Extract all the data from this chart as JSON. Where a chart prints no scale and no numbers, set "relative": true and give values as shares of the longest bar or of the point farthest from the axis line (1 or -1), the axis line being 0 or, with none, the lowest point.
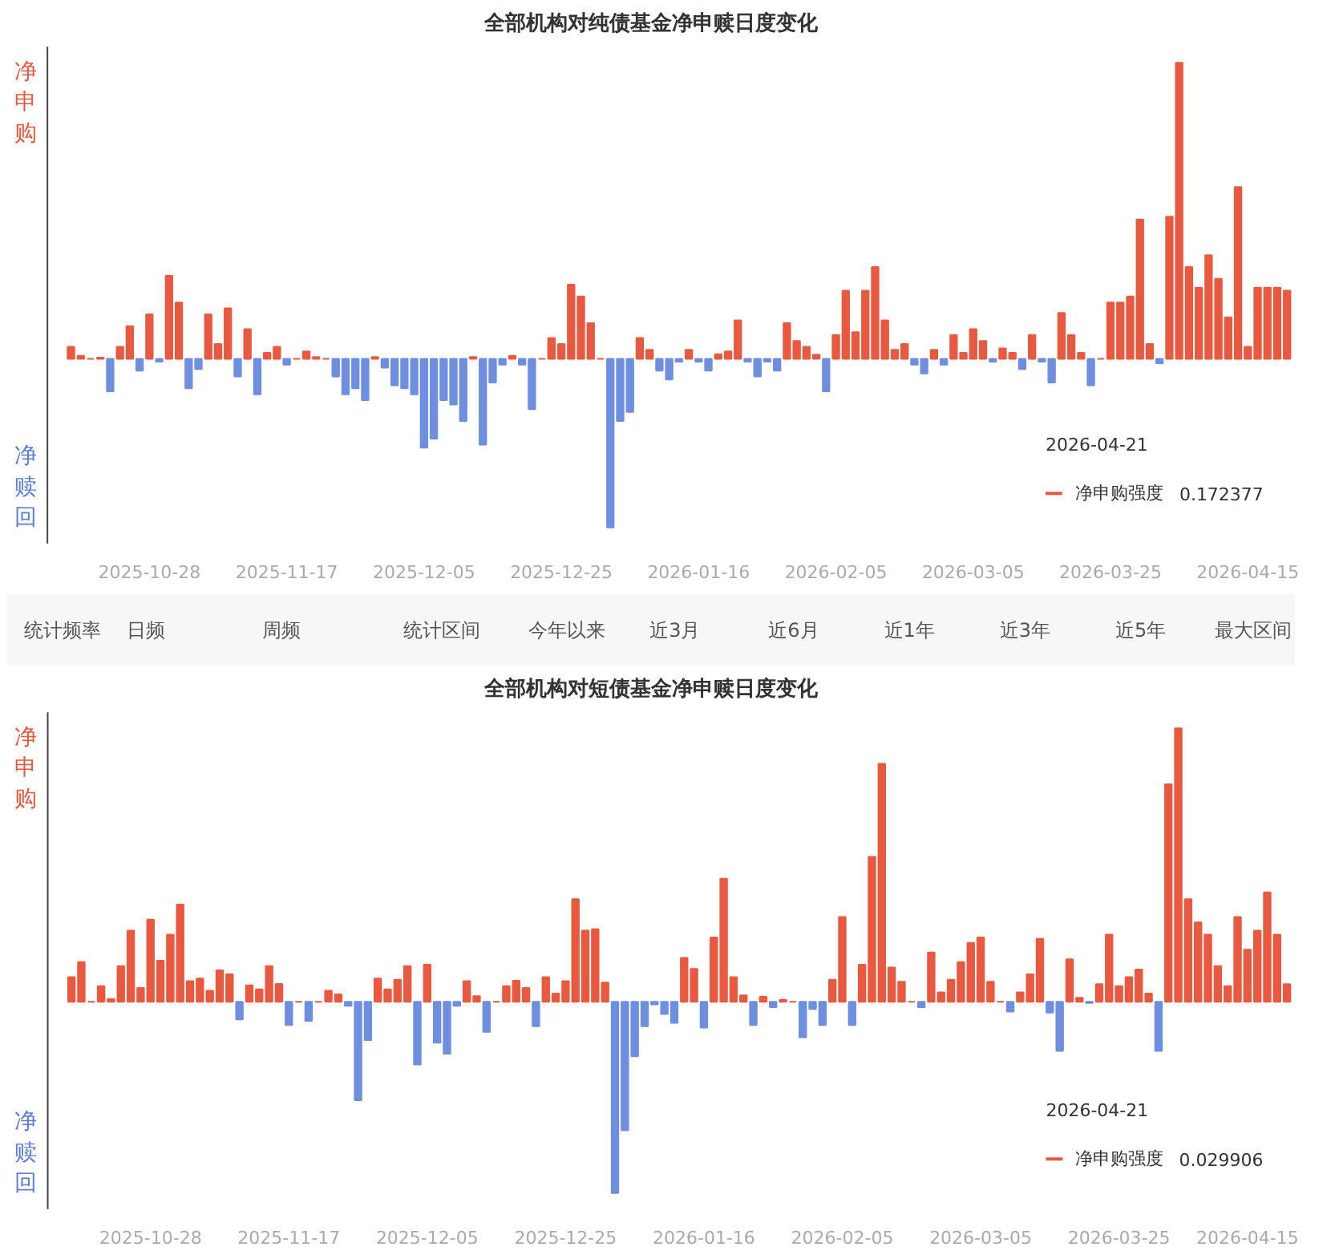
{
  "chart_data": [
    {
      "type": "bar",
      "title": "全部机构对纯债基金净申赎日度变化",
      "relative": true,
      "categories": [
        null,
        null,
        null,
        null,
        null,
        null,
        null,
        null,
        "2025-10-28",
        null,
        null,
        null,
        null,
        null,
        null,
        null,
        null,
        null,
        null,
        null,
        null,
        null,
        "2025-11-17",
        null,
        null,
        null,
        null,
        null,
        null,
        null,
        null,
        null,
        null,
        null,
        null,
        null,
        "2025-12-05",
        null,
        null,
        null,
        null,
        null,
        null,
        null,
        null,
        null,
        null,
        null,
        null,
        null,
        "2025-12-25",
        null,
        null,
        null,
        null,
        null,
        null,
        null,
        null,
        null,
        null,
        null,
        null,
        null,
        "2026-01-16",
        null,
        null,
        null,
        null,
        null,
        null,
        null,
        null,
        null,
        null,
        null,
        null,
        null,
        "2026-02-05",
        null,
        null,
        null,
        null,
        null,
        null,
        null,
        null,
        null,
        null,
        null,
        null,
        null,
        "2026-03-05",
        null,
        null,
        null,
        null,
        null,
        null,
        null,
        null,
        null,
        null,
        null,
        null,
        null,
        "2026-03-25",
        null,
        null,
        null,
        null,
        null,
        null,
        null,
        null,
        null,
        null,
        null,
        null,
        null,
        "2026-04-15",
        null,
        null,
        null,
        null
      ],
      "values": [
        0.04,
        0.01,
        0,
        0.004,
        -0.11,
        0.04,
        0.11,
        -0.04,
        0.15,
        -0.01,
        0.28,
        0.19,
        -0.1,
        -0.035,
        0.15,
        0.05,
        0.17,
        -0.06,
        0.1,
        -0.12,
        0.02,
        0.04,
        -0.02,
        0,
        0.025,
        0.006,
        0,
        -0.06,
        -0.12,
        -0.1,
        -0.14,
        0.006,
        -0.03,
        -0.09,
        -0.1,
        -0.12,
        -0.3,
        -0.27,
        -0.14,
        -0.155,
        -0.21,
        0.006,
        -0.29,
        -0.08,
        -0.02,
        0.01,
        -0.02,
        -0.17,
        0,
        0.07,
        0.05,
        0.25,
        0.21,
        0.12,
        0,
        -0.57,
        -0.21,
        -0.18,
        0.07,
        0.03,
        -0.04,
        -0.07,
        -0.01,
        0.03,
        -0.01,
        -0.04,
        0.015,
        0.025,
        0.13,
        -0.01,
        -0.06,
        -0.01,
        -0.04,
        0.12,
        0.06,
        0.04,
        0.014,
        -0.11,
        0.08,
        0.23,
        0.09,
        0.23,
        0.31,
        0.13,
        0.03,
        0.05,
        -0.02,
        -0.05,
        0.03,
        -0.02,
        0.08,
        0.02,
        0.1,
        0.06,
        -0.01,
        0.035,
        0.02,
        -0.035,
        0.08,
        -0.01,
        -0.08,
        0.155,
        0.08,
        0.02,
        -0.09,
        0,
        0.19,
        0.19,
        0.21,
        0.47,
        0.05,
        -0.015,
        0.48,
        1.0,
        0.31,
        0.24,
        0.35,
        0.27,
        0.14,
        0.58,
        0.04,
        0.24,
        0.24,
        0.24,
        0.23
      ],
      "colors": [
        "#e8593f",
        "#e8593f",
        "#e8593f",
        "#e8593f",
        "#6e8fdf",
        "#e8593f",
        "#e8593f",
        "#6e8fdf",
        "#e8593f",
        "#6e8fdf",
        "#e8593f",
        "#e8593f",
        "#6e8fdf",
        "#6e8fdf",
        "#e8593f",
        "#e8593f",
        "#e8593f",
        "#6e8fdf",
        "#e8593f",
        "#6e8fdf",
        "#e8593f",
        "#e8593f",
        "#6e8fdf",
        "#e8593f",
        "#e8593f",
        "#e8593f",
        "#e8593f",
        "#6e8fdf",
        "#6e8fdf",
        "#6e8fdf",
        "#6e8fdf",
        "#e8593f",
        "#6e8fdf",
        "#6e8fdf",
        "#6e8fdf",
        "#6e8fdf",
        "#6e8fdf",
        "#6e8fdf",
        "#6e8fdf",
        "#6e8fdf",
        "#6e8fdf",
        "#e8593f",
        "#6e8fdf",
        "#6e8fdf",
        "#6e8fdf",
        "#e8593f",
        "#6e8fdf",
        "#6e8fdf",
        "#e8593f",
        "#e8593f",
        "#e8593f",
        "#e8593f",
        "#e8593f",
        "#e8593f",
        "#e8593f",
        "#6e8fdf",
        "#6e8fdf",
        "#6e8fdf",
        "#e8593f",
        "#e8593f",
        "#6e8fdf",
        "#6e8fdf",
        "#6e8fdf",
        "#e8593f",
        "#6e8fdf",
        "#6e8fdf",
        "#e8593f",
        "#e8593f",
        "#e8593f",
        "#6e8fdf",
        "#6e8fdf",
        "#6e8fdf",
        "#6e8fdf",
        "#e8593f",
        "#e8593f",
        "#e8593f",
        "#e8593f",
        "#6e8fdf",
        "#e8593f",
        "#e8593f",
        "#e8593f",
        "#e8593f",
        "#e8593f",
        "#e8593f",
        "#e8593f",
        "#e8593f",
        "#6e8fdf",
        "#6e8fdf",
        "#e8593f",
        "#6e8fdf",
        "#e8593f",
        "#e8593f",
        "#e8593f",
        "#e8593f",
        "#6e8fdf",
        "#e8593f",
        "#e8593f",
        "#6e8fdf",
        "#e8593f",
        "#6e8fdf",
        "#6e8fdf",
        "#e8593f",
        "#e8593f",
        "#e8593f",
        "#6e8fdf",
        "#e8593f",
        "#e8593f",
        "#e8593f",
        "#e8593f",
        "#e8593f",
        "#e8593f",
        "#6e8fdf",
        "#e8593f",
        "#e8593f",
        "#e8593f",
        "#e8593f",
        "#e8593f",
        "#e8593f",
        "#e8593f",
        "#e8593f",
        "#e8593f",
        "#e8593f",
        "#e8593f",
        "#e8593f",
        "#e8593f"
      ],
      "annotations": [
        "净申购",
        "净赎回",
        "2026-04-21",
        "净申购强度",
        "0.172377"
      ]
    },
    {
      "type": "other",
      "annotations": [
        "统计频率",
        "日频",
        "周频",
        "统计区间",
        "今年以来",
        "近3月",
        "近6月",
        "近1年",
        "近3年",
        "近5年",
        "最大区间"
      ]
    },
    {
      "type": "bar",
      "title": "全部机构对短债基金净申赎日度变化",
      "relative": true,
      "categories": [
        null,
        null,
        null,
        null,
        null,
        null,
        null,
        null,
        "2025-10-28",
        null,
        null,
        null,
        null,
        null,
        null,
        null,
        null,
        null,
        null,
        null,
        null,
        null,
        "2025-11-17",
        null,
        null,
        null,
        null,
        null,
        null,
        null,
        null,
        null,
        null,
        null,
        null,
        null,
        "2025-12-05",
        null,
        null,
        null,
        null,
        null,
        null,
        null,
        null,
        null,
        null,
        null,
        null,
        null,
        "2025-12-25",
        null,
        null,
        null,
        null,
        null,
        null,
        null,
        null,
        null,
        null,
        null,
        null,
        null,
        "2026-01-16",
        null,
        null,
        null,
        null,
        null,
        null,
        null,
        null,
        null,
        null,
        null,
        null,
        null,
        "2026-02-05",
        null,
        null,
        null,
        null,
        null,
        null,
        null,
        null,
        null,
        null,
        null,
        null,
        null,
        "2026-03-05",
        null,
        null,
        null,
        null,
        null,
        null,
        null,
        null,
        null,
        null,
        null,
        null,
        null,
        "2026-03-25",
        null,
        null,
        null,
        null,
        null,
        null,
        null,
        null,
        null,
        null,
        null,
        null,
        "2026-04-15",
        null,
        null,
        null,
        null
      ],
      "values": [
        0.09,
        0.145,
        0,
        0.057,
        0.01,
        0.13,
        0.26,
        0.05,
        0.3,
        0.15,
        0.245,
        0.355,
        0.075,
        0.085,
        0.04,
        0.115,
        0.1,
        -0.065,
        0.06,
        0.045,
        0.13,
        0.065,
        -0.085,
        0,
        -0.07,
        0,
        0.04,
        0.027,
        -0.015,
        -0.36,
        -0.14,
        0.085,
        0.045,
        0.08,
        0.13,
        -0.23,
        0.135,
        -0.15,
        -0.19,
        -0.015,
        0.075,
        0.02,
        -0.11,
        0,
        0.057,
        0.077,
        0.05,
        -0.09,
        0.09,
        0.03,
        0.075,
        0.375,
        0.26,
        0.265,
        0.07,
        -0.7,
        -0.47,
        -0.2,
        -0.09,
        -0.01,
        -0.045,
        -0.077,
        0.16,
        0.12,
        -0.095,
        0.235,
        0.45,
        0.09,
        0.023,
        -0.085,
        0.018,
        -0.02,
        0.007,
        0,
        -0.13,
        -0.027,
        -0.085,
        0.08,
        0.31,
        -0.085,
        0.135,
        0.53,
        0.87,
        0.125,
        0.073,
        0,
        -0.02,
        0.18,
        0.034,
        0.08,
        0.145,
        0.215,
        0.235,
        0.073,
        0,
        -0.036,
        0.034,
        0.1,
        0.23,
        -0.04,
        -0.18,
        0.155,
        0.014,
        -0.005,
        0.064,
        0.245,
        0.057,
        0.09,
        0.118,
        0.03,
        -0.18,
        0.795,
        1,
        0.375,
        0.29,
        0.245,
        0.13,
        0.057,
        0.31,
        0.19,
        0.26,
        0.4,
        0.245,
        0.064
      ],
      "colors": [
        "#e8593f",
        "#e8593f",
        "#e8593f",
        "#e8593f",
        "#e8593f",
        "#e8593f",
        "#e8593f",
        "#e8593f",
        "#e8593f",
        "#e8593f",
        "#e8593f",
        "#e8593f",
        "#e8593f",
        "#e8593f",
        "#e8593f",
        "#e8593f",
        "#e8593f",
        "#6e8fdf",
        "#e8593f",
        "#e8593f",
        "#e8593f",
        "#e8593f",
        "#6e8fdf",
        "#e8593f",
        "#6e8fdf",
        "#e8593f",
        "#e8593f",
        "#e8593f",
        "#6e8fdf",
        "#6e8fdf",
        "#6e8fdf",
        "#e8593f",
        "#e8593f",
        "#e8593f",
        "#e8593f",
        "#6e8fdf",
        "#e8593f",
        "#6e8fdf",
        "#6e8fdf",
        "#6e8fdf",
        "#e8593f",
        "#e8593f",
        "#6e8fdf",
        "#e8593f",
        "#e8593f",
        "#e8593f",
        "#e8593f",
        "#6e8fdf",
        "#e8593f",
        "#e8593f",
        "#e8593f",
        "#e8593f",
        "#e8593f",
        "#e8593f",
        "#e8593f",
        "#6e8fdf",
        "#6e8fdf",
        "#6e8fdf",
        "#6e8fdf",
        "#6e8fdf",
        "#6e8fdf",
        "#6e8fdf",
        "#e8593f",
        "#e8593f",
        "#6e8fdf",
        "#e8593f",
        "#e8593f",
        "#e8593f",
        "#e8593f",
        "#6e8fdf",
        "#e8593f",
        "#6e8fdf",
        "#e8593f",
        "#e8593f",
        "#6e8fdf",
        "#6e8fdf",
        "#6e8fdf",
        "#e8593f",
        "#e8593f",
        "#6e8fdf",
        "#e8593f",
        "#e8593f",
        "#e8593f",
        "#e8593f",
        "#e8593f",
        "#e8593f",
        "#6e8fdf",
        "#e8593f",
        "#e8593f",
        "#e8593f",
        "#e8593f",
        "#e8593f",
        "#e8593f",
        "#e8593f",
        "#e8593f",
        "#6e8fdf",
        "#e8593f",
        "#e8593f",
        "#e8593f",
        "#6e8fdf",
        "#6e8fdf",
        "#e8593f",
        "#e8593f",
        "#6e8fdf",
        "#e8593f",
        "#e8593f",
        "#e8593f",
        "#e8593f",
        "#e8593f",
        "#e8593f",
        "#6e8fdf",
        "#e8593f",
        "#e8593f",
        "#e8593f",
        "#e8593f",
        "#e8593f",
        "#e8593f",
        "#e8593f",
        "#e8593f",
        "#e8593f",
        "#e8593f",
        "#e8593f",
        "#e8593f",
        "#e8593f"
      ],
      "annotations": [
        "净申购",
        "净赎回",
        "2026-04-21",
        "净申购强度",
        "0.029906"
      ]
    }
  ]
}
